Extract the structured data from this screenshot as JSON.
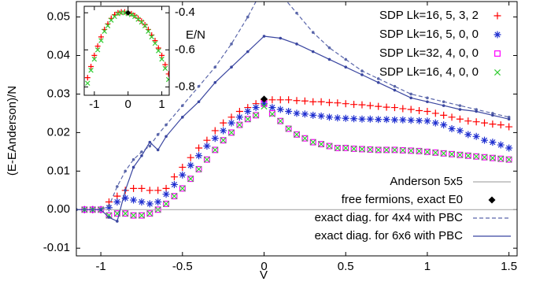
{
  "chart_data": [
    {
      "type": "line",
      "xlabel": "V",
      "ylabel": "(E-EAnderson)/N",
      "xlim": [
        -1.15,
        1.55
      ],
      "ylim": [
        -0.012,
        0.054
      ],
      "xticks": [
        -1,
        -0.5,
        0,
        0.5,
        1,
        1.5
      ],
      "yticks": [
        -0.01,
        {
          "value": 0,
          "label": "0.00"
        },
        0.01,
        0.02,
        0.03,
        0.04,
        0.05
      ],
      "x": [
        -1.1,
        -1.05,
        -1,
        -0.95,
        -0.9,
        -0.85,
        -0.8,
        -0.75,
        -0.7,
        -0.65,
        -0.6,
        -0.55,
        -0.5,
        -0.45,
        -0.4,
        -0.35,
        -0.3,
        -0.25,
        -0.2,
        -0.15,
        -0.1,
        -0.05,
        0,
        0.05,
        0.1,
        0.15,
        0.2,
        0.25,
        0.3,
        0.35,
        0.4,
        0.45,
        0.5,
        0.55,
        0.6,
        0.65,
        0.7,
        0.75,
        0.8,
        0.85,
        0.9,
        0.95,
        1,
        1.05,
        1.1,
        1.15,
        1.2,
        1.25,
        1.3,
        1.35,
        1.4,
        1.45,
        1.5
      ],
      "series": [
        {
          "name": "SDP Lk=16, 5, 3, 2",
          "color": "#ff0000",
          "marker": "plus",
          "legend": "upper right",
          "values": [
            0,
            0,
            0,
            0.002,
            0.0035,
            0.005,
            0.0055,
            0.0055,
            0.005,
            0.005,
            0.0055,
            0.0085,
            0.011,
            0.0135,
            0.016,
            0.018,
            0.0205,
            0.0225,
            0.024,
            0.0255,
            0.0265,
            0.0275,
            0.0285,
            0.0285,
            0.0285,
            0.0285,
            0.0283,
            0.0282,
            0.028,
            0.028,
            0.0278,
            0.0277,
            0.0275,
            0.0273,
            0.0272,
            0.027,
            0.0268,
            0.0266,
            0.0265,
            0.0262,
            0.026,
            0.0257,
            0.0255,
            0.025,
            0.0245,
            0.024,
            0.0235,
            0.023,
            0.0228,
            0.0225,
            0.0222,
            0.022,
            0.0215
          ]
        },
        {
          "name": "SDP Lk=16, 5, 0, 0",
          "color": "#1f2fd0",
          "marker": "star",
          "legend": "upper right",
          "values": [
            0,
            0,
            0,
            0.0005,
            0.002,
            0.003,
            0.0025,
            0.002,
            0.0015,
            0.002,
            0.004,
            0.0065,
            0.009,
            0.0115,
            0.014,
            0.0165,
            0.0185,
            0.0205,
            0.0225,
            0.024,
            0.0255,
            0.0265,
            0.0275,
            0.0265,
            0.026,
            0.0255,
            0.025,
            0.0248,
            0.0245,
            0.0243,
            0.024,
            0.0238,
            0.0237,
            0.0236,
            0.0235,
            0.0235,
            0.0234,
            0.0234,
            0.0233,
            0.0233,
            0.0232,
            0.0231,
            0.023,
            0.0225,
            0.022,
            0.021,
            0.0205,
            0.0195,
            0.019,
            0.018,
            0.0175,
            0.0168,
            0.016
          ]
        },
        {
          "name": "SDP Lk=32, 4, 0, 0",
          "color": "#ff00ff",
          "marker": "square",
          "legend": "upper right",
          "values": [
            0,
            0,
            0,
            -0.0015,
            -0.001,
            -0.001,
            -0.0015,
            -0.0015,
            -0.001,
            0,
            0.0015,
            0.0035,
            0.0055,
            0.008,
            0.0105,
            0.013,
            0.0155,
            0.018,
            0.02,
            0.022,
            0.0235,
            0.0245,
            0.0275,
            0.025,
            0.023,
            0.021,
            0.0195,
            0.0185,
            0.0175,
            0.017,
            0.0165,
            0.016,
            0.016,
            0.0158,
            0.0157,
            0.0156,
            0.0155,
            0.0155,
            0.0155,
            0.0154,
            0.0153,
            0.0152,
            0.015,
            0.0148,
            0.0146,
            0.0144,
            0.0142,
            0.014,
            0.0138,
            0.0136,
            0.0134,
            0.0132,
            0.013
          ]
        },
        {
          "name": "SDP Lk=16, 4, 0, 0",
          "color": "#33cc33",
          "marker": "cross",
          "legend": "upper right",
          "values": [
            0,
            0,
            0,
            -0.0015,
            -0.001,
            -0.001,
            -0.0015,
            -0.0015,
            -0.001,
            0,
            0.0015,
            0.0035,
            0.0055,
            0.008,
            0.0105,
            0.013,
            0.0155,
            0.018,
            0.02,
            0.022,
            0.0235,
            0.0245,
            0.0268,
            0.0248,
            0.023,
            0.021,
            0.0195,
            0.0185,
            0.0175,
            0.017,
            0.0165,
            0.016,
            0.016,
            0.0158,
            0.0157,
            0.0156,
            0.0155,
            0.0155,
            0.0155,
            0.0154,
            0.0153,
            0.0152,
            0.015,
            0.0148,
            0.0146,
            0.0144,
            0.0142,
            0.014,
            0.0138,
            0.0136,
            0.0134,
            0.0132,
            0.013
          ]
        },
        {
          "name": "Anderson 5x5",
          "color": "#aaaaaa",
          "line": "solid",
          "legend": "lower right",
          "x": [
            -1.15,
            1.55
          ],
          "values": [
            0,
            0
          ]
        },
        {
          "name": "free fermions, exact E0",
          "color": "#000000",
          "marker": "diamond",
          "legend": "lower right",
          "x": [
            0
          ],
          "values": [
            0.0287
          ]
        },
        {
          "name": "exact diag. for 4x4 with PBC",
          "color": "#5a66aa",
          "line": "dashed",
          "marker": "dot",
          "legend": "lower right",
          "x": [
            -1.15,
            -1,
            -0.95,
            -0.9,
            -0.85,
            -0.8,
            -0.75,
            -0.7,
            -0.65,
            -0.6,
            -0.5,
            -0.4,
            -0.3,
            -0.2,
            -0.1,
            0,
            0.1,
            0.2,
            0.3,
            0.4,
            0.5,
            0.6,
            0.7,
            0.8,
            0.9,
            1,
            1.1,
            1.2,
            1.3,
            1.4,
            1.5
          ],
          "values": [
            0,
            0,
            0.001,
            0.006,
            0.01,
            0.013,
            0.015,
            0.0165,
            0.0195,
            0.022,
            0.027,
            0.032,
            0.037,
            0.043,
            0.05,
            0.058,
            0.056,
            0.051,
            0.046,
            0.042,
            0.039,
            0.036,
            0.034,
            0.032,
            0.03,
            0.029,
            0.028,
            0.027,
            0.026,
            0.025,
            0.024
          ]
        },
        {
          "name": "exact diag. for 6x6 with PBC",
          "color": "#3a46a0",
          "line": "solid",
          "marker": "dot",
          "legend": "lower right",
          "x": [
            -1.15,
            -1,
            -0.95,
            -0.9,
            -0.85,
            -0.8,
            -0.75,
            -0.7,
            -0.65,
            -0.6,
            -0.5,
            -0.4,
            -0.3,
            -0.2,
            -0.1,
            0,
            0.1,
            0.2,
            0.3,
            0.4,
            0.5,
            0.6,
            0.7,
            0.8,
            0.9,
            1,
            1.1,
            1.2,
            1.3,
            1.4,
            1.5
          ],
          "values": [
            0,
            0,
            -0.002,
            -0.003,
            0.005,
            0.011,
            0.014,
            0.0175,
            0.0155,
            0.019,
            0.024,
            0.028,
            0.033,
            0.037,
            0.041,
            0.045,
            0.0445,
            0.043,
            0.041,
            0.039,
            0.037,
            0.035,
            0.033,
            0.031,
            0.029,
            0.028,
            0.027,
            0.026,
            0.0255,
            0.0245,
            0.0235
          ]
        }
      ]
    },
    {
      "type": "line",
      "ylabel": "E/N",
      "xlim": [
        -1.3,
        1.22
      ],
      "ylim": [
        -0.845,
        -0.365
      ],
      "xticks": [
        -1,
        0,
        1
      ],
      "yticks": [
        -0.8,
        -0.6,
        -0.4
      ],
      "x": [
        -1.2,
        -1.1,
        -1,
        -0.9,
        -0.8,
        -0.7,
        -0.6,
        -0.5,
        -0.4,
        -0.3,
        -0.2,
        -0.1,
        0,
        0.1,
        0.2,
        0.3,
        0.4,
        0.5,
        0.6,
        0.7,
        0.8,
        0.9,
        1,
        1.1,
        1.2
      ],
      "series": [
        {
          "color": "#ff0000",
          "marker": "plus",
          "values": [
            -0.75,
            -0.69,
            -0.63,
            -0.58,
            -0.53,
            -0.49,
            -0.46,
            -0.43,
            -0.41,
            -0.4,
            -0.395,
            -0.395,
            -0.4,
            -0.405,
            -0.415,
            -0.43,
            -0.445,
            -0.465,
            -0.49,
            -0.52,
            -0.55,
            -0.59,
            -0.63,
            -0.68,
            -0.73
          ]
        },
        {
          "color": "#33cc33",
          "marker": "cross",
          "values": [
            -0.78,
            -0.71,
            -0.65,
            -0.6,
            -0.55,
            -0.5,
            -0.47,
            -0.44,
            -0.42,
            -0.405,
            -0.4,
            -0.4,
            -0.405,
            -0.41,
            -0.42,
            -0.435,
            -0.45,
            -0.47,
            -0.5,
            -0.53,
            -0.565,
            -0.605,
            -0.65,
            -0.7,
            -0.76
          ]
        },
        {
          "color": "#000000",
          "marker": "diamond",
          "x": [
            0
          ],
          "values": [
            -0.4
          ]
        }
      ]
    }
  ]
}
